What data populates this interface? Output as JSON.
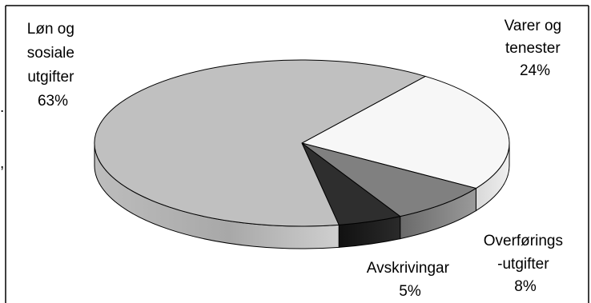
{
  "chart_data": {
    "type": "pie",
    "style": "3d-tilted",
    "title": "",
    "slices": [
      {
        "label_lines": [
          "Løn og",
          "sosiale",
          "utgifter"
        ],
        "value": 63,
        "value_text": "63%",
        "color": "#c0c0c0"
      },
      {
        "label_lines": [
          "Varer og",
          "tenester"
        ],
        "value": 24,
        "value_text": "24%",
        "color": "#f7f7f7"
      },
      {
        "label_lines": [
          "Overførings",
          "-utgifter"
        ],
        "value": 8,
        "value_text": "8%",
        "color": "#808080"
      },
      {
        "label_lines": [
          "Avskrivingar"
        ],
        "value": 5,
        "value_text": "5%",
        "color": "#2e2e2e"
      }
    ],
    "legend": "none"
  },
  "edge_marks": [
    ".",
    ","
  ]
}
